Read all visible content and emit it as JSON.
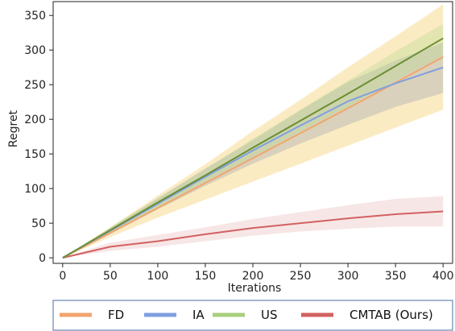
{
  "chart_data": {
    "type": "line",
    "title": "",
    "xlabel": "Iterations",
    "ylabel": "Regret",
    "xlim": [
      -10,
      410
    ],
    "ylim": [
      -8,
      370
    ],
    "xticks": [
      0,
      50,
      100,
      150,
      200,
      250,
      300,
      350,
      400
    ],
    "yticks": [
      0,
      50,
      100,
      150,
      200,
      250,
      300,
      350
    ],
    "legend_position": "bottom-outside",
    "grid": false,
    "x": [
      0,
      50,
      100,
      150,
      200,
      250,
      300,
      350,
      400
    ],
    "series": [
      {
        "name": "FD",
        "color": "#f0a66e",
        "band_color": "#f7d27a",
        "values": [
          0,
          36,
          72,
          108,
          144,
          180,
          216,
          253,
          290
        ],
        "lower": [
          0,
          30,
          58,
          84,
          110,
          136,
          162,
          188,
          214
        ],
        "upper": [
          0,
          44,
          90,
          135,
          183,
          228,
          275,
          320,
          366
        ]
      },
      {
        "name": "IA",
        "color": "#7f9fe0",
        "band_color": "#9aa0ad",
        "values": [
          0,
          39,
          78,
          117,
          155,
          191,
          226,
          252,
          275
        ],
        "lower": [
          0,
          34,
          70,
          104,
          136,
          165,
          192,
          218,
          238
        ],
        "upper": [
          0,
          43,
          86,
          129,
          170,
          213,
          254,
          285,
          311
        ]
      },
      {
        "name": "US",
        "color": "#a8cf7c",
        "band_color": "#b6d98e",
        "line_color": "#6b8e35",
        "values": [
          0,
          40,
          80,
          119,
          159,
          198,
          237,
          277,
          317
        ],
        "lower": [
          0,
          36,
          73,
          110,
          146,
          182,
          218,
          256,
          292
        ],
        "upper": [
          0,
          44,
          86,
          128,
          172,
          214,
          256,
          298,
          338
        ]
      },
      {
        "name": "CMTAB (Ours)",
        "color": "#d26161",
        "band_color": "#e8b8b8",
        "values": [
          0,
          16,
          24,
          34,
          43,
          50,
          57,
          63,
          67
        ],
        "lower": [
          0,
          10,
          16,
          24,
          32,
          38,
          42,
          45,
          45
        ],
        "upper": [
          0,
          22,
          33,
          44,
          56,
          66,
          76,
          85,
          89
        ]
      }
    ]
  }
}
